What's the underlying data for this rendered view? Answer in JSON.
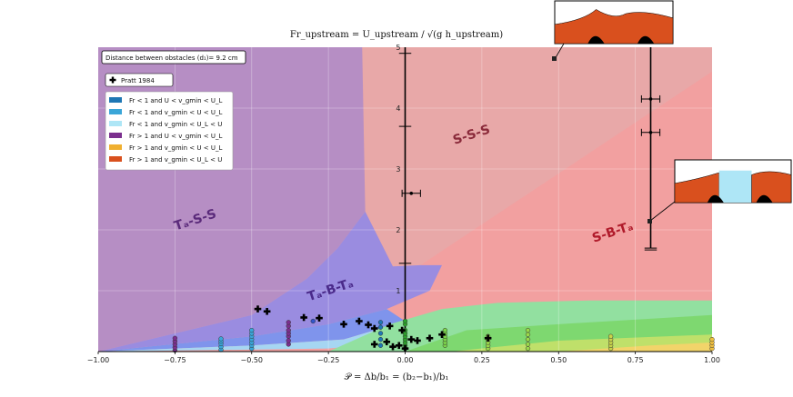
{
  "chart_data": {
    "type": "scatter",
    "title": "Fr_upstream = U_upstream / √(g h_upstream)",
    "xlabel": "𝒫 = Δb/b₁ = (b₂−b₁)/b₁",
    "ylabel": "",
    "xlim": [
      -1.0,
      1.0
    ],
    "ylim": [
      0,
      5
    ],
    "grid": true,
    "x_ticks": [
      "−1.00",
      "−0.75",
      "−0.50",
      "−0.25",
      "0.00",
      "0.25",
      "0.50",
      "0.75",
      "1.00"
    ],
    "y_ticks": [
      "1",
      "2",
      "3",
      "4",
      "5"
    ],
    "distance_label": "Distance between obstacles (d₁)= 9.2 cm",
    "legend_placement": "top-left",
    "legend": [
      {
        "label": "Pratt 1984",
        "marker": "plus",
        "color": "#000000"
      },
      {
        "label": "Fr < 1 and U < v_gmin < U_L",
        "color": "#1f77b4"
      },
      {
        "label": "Fr < 1 and v_gmin < U < U_L",
        "color": "#3aa6d8"
      },
      {
        "label": "Fr < 1 and v_gmin < U_L < U",
        "color": "#aee6f6"
      },
      {
        "label": "Fr > 1 and U < v_gmin < U_L",
        "color": "#7b2f8e"
      },
      {
        "label": "Fr > 1 and v_gmin < U < U_L",
        "color": "#f0b030"
      },
      {
        "label": "Fr > 1 and v_gmin < U_L < U",
        "color": "#d9501e"
      }
    ],
    "regions": [
      {
        "name": "Ta-S-S",
        "color": "#b48cc0"
      },
      {
        "name": "S-S-S",
        "color": "#e8a0a8"
      },
      {
        "name": "S-B-Ta",
        "color": "#f08080"
      },
      {
        "name": "Ta-B-Ta",
        "color": "#9a8ee0"
      }
    ],
    "region_labels": [
      {
        "text": "Tₐ-S-S",
        "x": -0.68,
        "y": 2.1,
        "color": "#5a2a7a"
      },
      {
        "text": "S-S-S",
        "x": 0.22,
        "y": 3.5,
        "color": "#8a2a3a"
      },
      {
        "text": "S-B-Tₐ",
        "x": 0.68,
        "y": 1.9,
        "color": "#b01a2a"
      },
      {
        "text": "Tₐ-B-Tₐ",
        "x": -0.24,
        "y": 0.95,
        "color": "#4a2a8a"
      }
    ],
    "pratt_points": [
      [
        -0.48,
        0.7
      ],
      [
        -0.45,
        0.66
      ],
      [
        -0.33,
        0.56
      ],
      [
        -0.28,
        0.55
      ],
      [
        -0.2,
        0.45
      ],
      [
        -0.15,
        0.5
      ],
      [
        -0.12,
        0.44
      ],
      [
        -0.1,
        0.38
      ],
      [
        -0.05,
        0.42
      ],
      [
        -0.01,
        0.35
      ],
      [
        0.02,
        0.2
      ],
      [
        0.04,
        0.18
      ],
      [
        0.08,
        0.22
      ],
      [
        0.12,
        0.28
      ],
      [
        0.27,
        0.22
      ],
      [
        -0.1,
        0.12
      ],
      [
        -0.06,
        0.16
      ],
      [
        -0.04,
        0.08
      ],
      [
        -0.02,
        0.1
      ],
      [
        0.0,
        0.05
      ]
    ],
    "experiment_columns": [
      {
        "x": -0.75,
        "ys": [
          0.02,
          0.07,
          0.12,
          0.17,
          0.22
        ],
        "color": "#7b2f8e"
      },
      {
        "x": -0.6,
        "ys": [
          0.03,
          0.08,
          0.13,
          0.17,
          0.21
        ],
        "color": "#3aa6d8"
      },
      {
        "x": -0.5,
        "ys": [
          0.05,
          0.1,
          0.15,
          0.2,
          0.25,
          0.3,
          0.35
        ],
        "color": "#3aa6d8"
      },
      {
        "x": -0.38,
        "ys": [
          0.12,
          0.18,
          0.25,
          0.3,
          0.35,
          0.42,
          0.48
        ],
        "color": "#7b2f8e"
      },
      {
        "x": -0.3,
        "ys": [
          0.5
        ],
        "color": "#3355cc"
      },
      {
        "x": -0.08,
        "ys": [
          0.1,
          0.2,
          0.3,
          0.4,
          0.48
        ],
        "color": "#1f77b4"
      },
      {
        "x": 0.0,
        "ys": [
          0.05,
          0.1,
          0.15,
          0.2,
          0.25,
          0.3,
          0.35,
          0.45,
          0.5
        ],
        "color": "#2ca02c"
      },
      {
        "x": 0.13,
        "ys": [
          0.1,
          0.15,
          0.2,
          0.25,
          0.3,
          0.35
        ],
        "color": "#7bd44a"
      },
      {
        "x": 0.27,
        "ys": [
          0.05,
          0.1,
          0.15,
          0.2,
          0.25
        ],
        "color": "#9ad84a"
      },
      {
        "x": 0.4,
        "ys": [
          0.05,
          0.12,
          0.2,
          0.28,
          0.35
        ],
        "color": "#9ad84a"
      },
      {
        "x": 0.67,
        "ys": [
          0.05,
          0.1,
          0.15,
          0.2,
          0.25
        ],
        "color": "#c8d44a"
      },
      {
        "x": 1.0,
        "ys": [
          0.05,
          0.1,
          0.15,
          0.2
        ],
        "color": "#f0c040"
      }
    ],
    "error_points": [
      {
        "x": 0.8,
        "y": 4.15,
        "xerr": 0.03
      },
      {
        "x": 0.8,
        "y": 3.6,
        "xerr": 0.03
      },
      {
        "x": 0.02,
        "y": 2.6,
        "xerr": 0.03
      }
    ],
    "vertical_lines": [
      {
        "x": 0.0,
        "y0": 0,
        "y1": 5
      },
      {
        "x": 0.8,
        "y0": 1.7,
        "y1": 5
      }
    ]
  }
}
